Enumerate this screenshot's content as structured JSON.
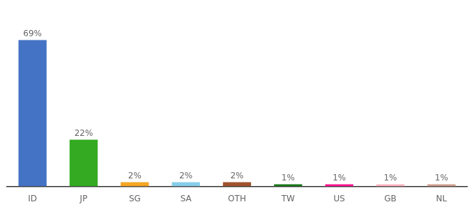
{
  "chart_data": {
    "type": "bar",
    "categories": [
      "ID",
      "JP",
      "SG",
      "SA",
      "OTH",
      "TW",
      "US",
      "GB",
      "NL"
    ],
    "values": [
      69,
      22,
      2,
      2,
      2,
      1,
      1,
      1,
      1
    ],
    "value_labels": [
      "69%",
      "22%",
      "2%",
      "2%",
      "2%",
      "1%",
      "1%",
      "1%",
      "1%"
    ],
    "colors": [
      "#4472C4",
      "#33AA22",
      "#F5A623",
      "#87CEEB",
      "#A0522D",
      "#1A7A1A",
      "#FF1493",
      "#FFB6C1",
      "#D2A090"
    ],
    "ylim": [
      0,
      80
    ],
    "data_labels": true,
    "grid": false,
    "tick_labels": "x"
  }
}
